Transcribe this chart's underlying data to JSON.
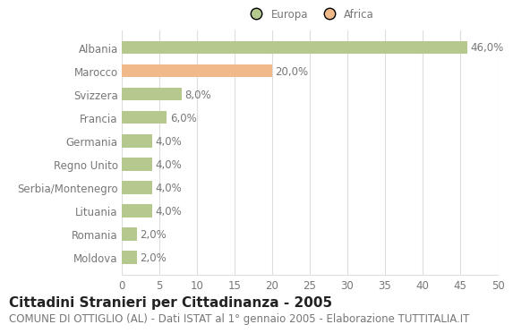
{
  "countries": [
    "Albania",
    "Marocco",
    "Svizzera",
    "Francia",
    "Germania",
    "Regno Unito",
    "Serbia/Montenegro",
    "Lituania",
    "Romania",
    "Moldova"
  ],
  "values": [
    46.0,
    20.0,
    8.0,
    6.0,
    4.0,
    4.0,
    4.0,
    4.0,
    2.0,
    2.0
  ],
  "colors": [
    "#b5c98e",
    "#f0b98a",
    "#b5c98e",
    "#b5c98e",
    "#b5c98e",
    "#b5c98e",
    "#b5c98e",
    "#b5c98e",
    "#b5c98e",
    "#b5c98e"
  ],
  "europa_color": "#b5c98e",
  "africa_color": "#f0b98a",
  "xlim": [
    0,
    50
  ],
  "xticks": [
    0,
    5,
    10,
    15,
    20,
    25,
    30,
    35,
    40,
    45,
    50
  ],
  "title": "Cittadini Stranieri per Cittadinanza - 2005",
  "subtitle": "COMUNE DI OTTIGLIO (AL) - Dati ISTAT al 1° gennaio 2005 - Elaborazione TUTTITALIA.IT",
  "title_fontsize": 11,
  "subtitle_fontsize": 8.5,
  "label_fontsize": 8.5,
  "tick_fontsize": 8.5,
  "legend_labels": [
    "Europa",
    "Africa"
  ],
  "background_color": "#ffffff",
  "grid_color": "#dddddd",
  "bar_height": 0.55,
  "text_color": "#777777",
  "title_color": "#222222"
}
